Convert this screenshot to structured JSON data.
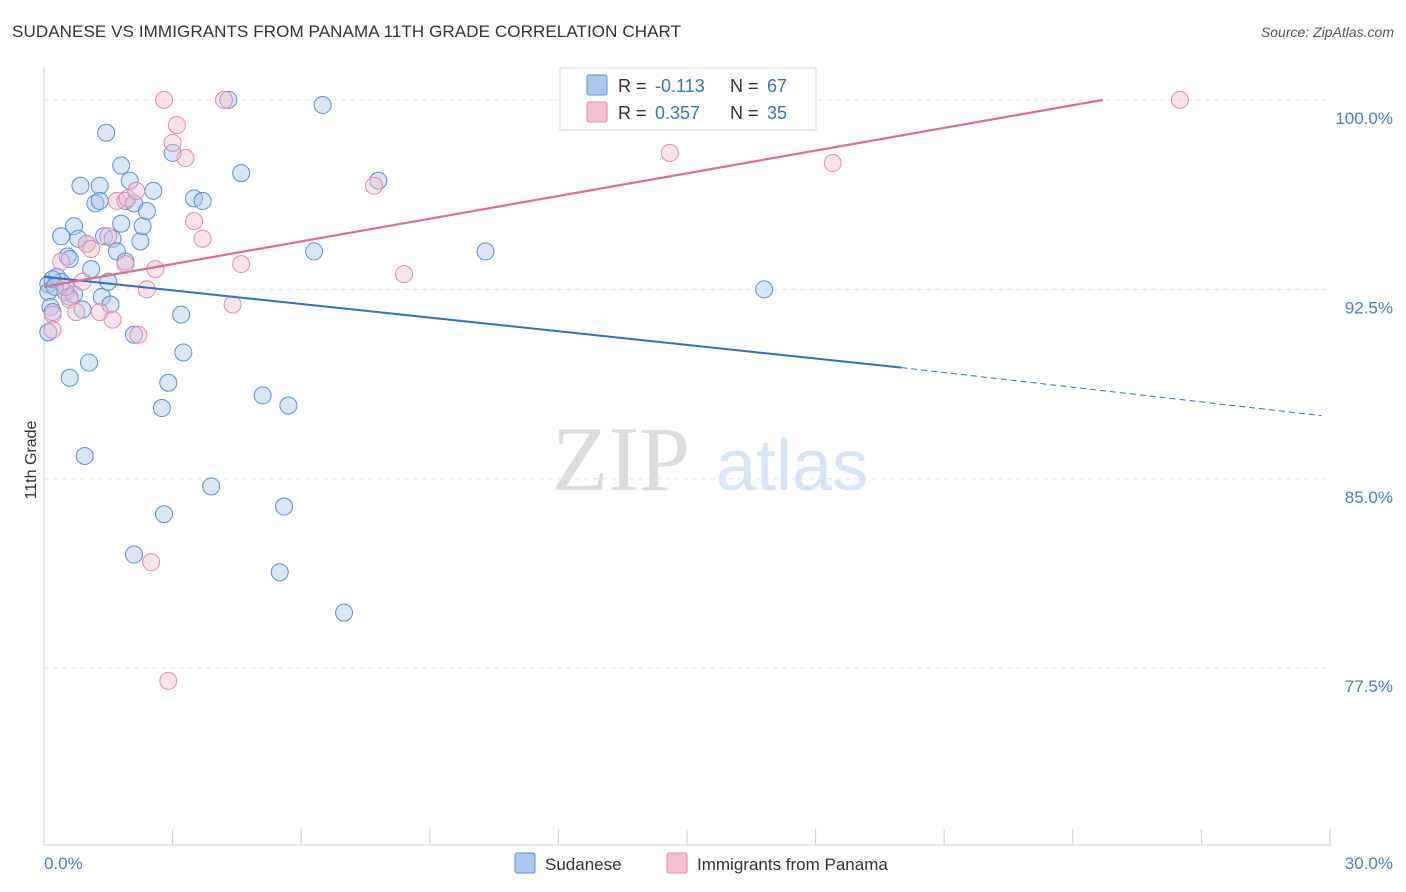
{
  "title": "SUDANESE VS IMMIGRANTS FROM PANAMA 11TH GRADE CORRELATION CHART",
  "source": "Source: ZipAtlas.com",
  "watermark": {
    "zip": "ZIP",
    "atlas": "atlas"
  },
  "colors": {
    "blue_fill": "#a9c8f0",
    "blue_stroke": "#5b8fd6",
    "blue_line": "#2f6fcc",
    "pink_fill": "#f7c0d2",
    "pink_stroke": "#e58aa9",
    "pink_line": "#de6b93",
    "grid": "#e3e3e3",
    "axis_text": "#4a7cc9"
  },
  "legend": {
    "rows": [
      {
        "r_label": "R =",
        "r_value": "-0.113",
        "n_label": "N =",
        "n_value": "67"
      },
      {
        "r_label": "R =",
        "r_value": "0.357",
        "n_label": "N =",
        "n_value": "35"
      }
    ]
  },
  "bottom_legend": [
    "Sudanese",
    "Immigrants from Panama"
  ],
  "chart_data": {
    "type": "scatter",
    "title": "SUDANESE VS IMMIGRANTS FROM PANAMA 11TH GRADE CORRELATION CHART",
    "xlabel": "",
    "ylabel": "11th Grade",
    "xlim": [
      0,
      30
    ],
    "ylim": [
      70.5,
      101.5
    ],
    "x_tick_labels": [
      "0.0%",
      "30.0%"
    ],
    "y_ticks": [
      77.5,
      85.0,
      92.5,
      100.0
    ],
    "y_tick_labels": [
      "77.5%",
      "85.0%",
      "92.5%",
      "100.0%"
    ],
    "series": [
      {
        "name": "Sudanese",
        "R": -0.113,
        "N": 67,
        "trend": {
          "x_start": 0.0,
          "y_start": 93.0,
          "x_solid_end": 20.0,
          "y_solid_end": 89.4,
          "x_end": 29.8,
          "y_end": 87.5
        },
        "points": [
          [
            0.1,
            92.7
          ],
          [
            0.1,
            92.4
          ],
          [
            0.15,
            91.8
          ],
          [
            0.2,
            91.6
          ],
          [
            0.1,
            90.8
          ],
          [
            0.3,
            93.0
          ],
          [
            0.4,
            92.8
          ],
          [
            0.5,
            92.4
          ],
          [
            0.55,
            93.8
          ],
          [
            0.6,
            93.7
          ],
          [
            0.7,
            95.0
          ],
          [
            0.8,
            94.5
          ],
          [
            0.85,
            96.6
          ],
          [
            0.4,
            94.6
          ],
          [
            0.6,
            92.2
          ],
          [
            0.9,
            91.7
          ],
          [
            1.0,
            94.3
          ],
          [
            1.1,
            93.3
          ],
          [
            1.2,
            95.9
          ],
          [
            1.3,
            96.6
          ],
          [
            1.35,
            92.2
          ],
          [
            1.4,
            94.6
          ],
          [
            1.5,
            92.8
          ],
          [
            1.55,
            91.9
          ],
          [
            1.6,
            94.5
          ],
          [
            1.7,
            94.0
          ],
          [
            1.8,
            95.1
          ],
          [
            1.9,
            93.6
          ],
          [
            1.8,
            97.4
          ],
          [
            1.9,
            96.0
          ],
          [
            2.0,
            96.8
          ],
          [
            2.1,
            95.9
          ],
          [
            2.25,
            94.4
          ],
          [
            2.3,
            95.0
          ],
          [
            2.4,
            95.6
          ],
          [
            2.55,
            96.4
          ],
          [
            1.45,
            98.7
          ],
          [
            2.1,
            90.7
          ],
          [
            0.6,
            89.0
          ],
          [
            1.05,
            89.6
          ],
          [
            0.95,
            85.9
          ],
          [
            2.75,
            87.8
          ],
          [
            2.9,
            88.8
          ],
          [
            3.2,
            91.5
          ],
          [
            3.25,
            90.0
          ],
          [
            3.0,
            97.9
          ],
          [
            3.5,
            96.1
          ],
          [
            3.7,
            96.0
          ],
          [
            4.3,
            100.0
          ],
          [
            4.6,
            97.1
          ],
          [
            6.5,
            99.8
          ],
          [
            7.8,
            96.8
          ],
          [
            6.3,
            94.0
          ],
          [
            10.3,
            94.0
          ],
          [
            16.8,
            92.5
          ],
          [
            3.9,
            84.7
          ],
          [
            2.8,
            83.6
          ],
          [
            5.1,
            88.3
          ],
          [
            5.7,
            87.9
          ],
          [
            5.6,
            83.9
          ],
          [
            2.1,
            82.0
          ],
          [
            5.5,
            81.3
          ],
          [
            7.0,
            79.7
          ],
          [
            0.2,
            92.9
          ],
          [
            0.25,
            92.6
          ],
          [
            0.7,
            92.3
          ],
          [
            1.3,
            96.0
          ]
        ]
      },
      {
        "name": "Immigrants from Panama",
        "R": 0.357,
        "N": 35,
        "trend": {
          "x_start": 0.0,
          "y_start": 92.6,
          "x_end": 24.7,
          "y_end": 100.0
        },
        "points": [
          [
            0.2,
            91.5
          ],
          [
            0.2,
            90.9
          ],
          [
            0.4,
            93.6
          ],
          [
            0.6,
            92.1
          ],
          [
            0.75,
            91.6
          ],
          [
            0.9,
            92.8
          ],
          [
            1.0,
            94.3
          ],
          [
            1.1,
            94.1
          ],
          [
            1.3,
            91.6
          ],
          [
            1.5,
            94.6
          ],
          [
            1.6,
            91.3
          ],
          [
            1.7,
            96.0
          ],
          [
            1.9,
            93.5
          ],
          [
            1.95,
            96.1
          ],
          [
            2.15,
            96.4
          ],
          [
            2.2,
            90.7
          ],
          [
            2.4,
            92.5
          ],
          [
            2.6,
            93.3
          ],
          [
            2.8,
            100.0
          ],
          [
            3.0,
            98.3
          ],
          [
            3.1,
            99.0
          ],
          [
            3.3,
            97.7
          ],
          [
            3.5,
            95.2
          ],
          [
            3.7,
            94.5
          ],
          [
            4.2,
            100.0
          ],
          [
            4.4,
            91.9
          ],
          [
            4.6,
            93.5
          ],
          [
            7.7,
            96.6
          ],
          [
            8.4,
            93.1
          ],
          [
            14.6,
            97.9
          ],
          [
            18.4,
            97.5
          ],
          [
            26.5,
            100.0
          ],
          [
            2.5,
            81.7
          ],
          [
            2.9,
            77.0
          ],
          [
            0.5,
            92.6
          ]
        ]
      }
    ]
  }
}
